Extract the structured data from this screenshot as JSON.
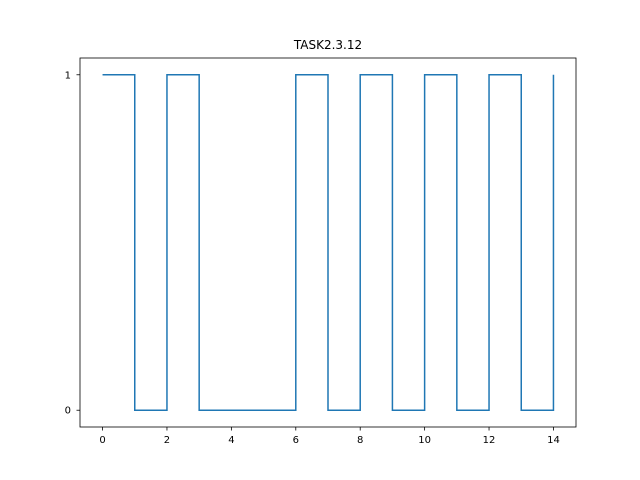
{
  "chart_data": {
    "type": "line",
    "drawstyle": "steps-post",
    "title": "TASK2.3.12",
    "xlabel": "",
    "ylabel": "",
    "x": [
      0,
      1,
      2,
      3,
      4,
      5,
      6,
      7,
      8,
      9,
      10,
      11,
      12,
      13,
      14
    ],
    "y": [
      1,
      0,
      1,
      0,
      0,
      0,
      1,
      0,
      1,
      0,
      1,
      0,
      1,
      0,
      1
    ],
    "xlim": [
      -0.7,
      14.7
    ],
    "ylim": [
      -0.05,
      1.05
    ],
    "xticks": [
      0,
      2,
      4,
      6,
      8,
      10,
      12,
      14
    ],
    "xtick_labels": [
      "0",
      "2",
      "4",
      "6",
      "8",
      "10",
      "12",
      "14"
    ],
    "yticks": [
      0,
      1
    ],
    "ytick_labels": [
      "0",
      "1"
    ],
    "line_color": "#1f77b4",
    "grid": false,
    "legend": "none"
  }
}
